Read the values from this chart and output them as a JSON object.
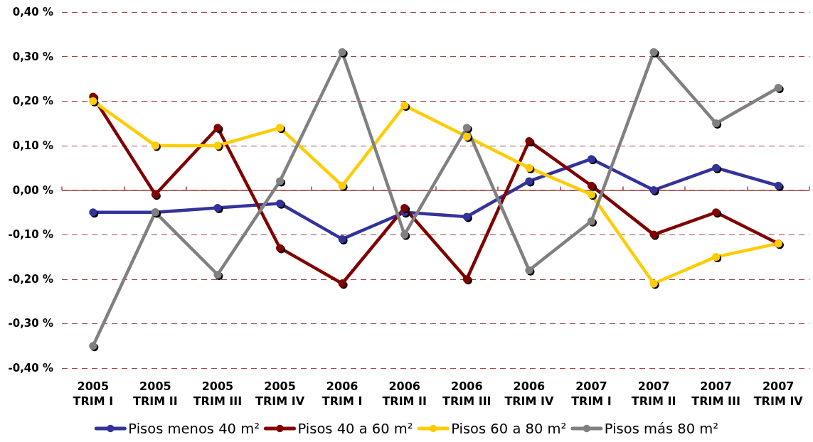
{
  "chart_data": {
    "type": "line",
    "categories": [
      "2005\nTRIM I",
      "2005\nTRIM II",
      "2005\nTRIM III",
      "2005\nTRIM IV",
      "2006\nTRIM I",
      "2006\nTRIM II",
      "2006\nTRIM III",
      "2006\nTRIM IV",
      "2007\nTRIM I",
      "2007\nTRIM II",
      "2007\nTRIM III",
      "2007\nTRIM IV"
    ],
    "series": [
      {
        "name": "Pisos menos 40 m²",
        "color": "#333399",
        "values": [
          -0.05,
          -0.05,
          -0.04,
          -0.03,
          -0.11,
          -0.05,
          -0.06,
          0.02,
          0.07,
          0.0,
          0.05,
          0.01
        ]
      },
      {
        "name": "Pisos 40 a 60 m²",
        "color": "#800000",
        "values": [
          0.21,
          -0.01,
          0.14,
          -0.13,
          -0.21,
          -0.04,
          -0.2,
          0.11,
          0.01,
          -0.1,
          -0.05,
          -0.12
        ]
      },
      {
        "name": "Pisos 60 a 80 m²",
        "color": "#ffcc00",
        "values": [
          0.2,
          0.1,
          0.1,
          0.14,
          0.01,
          0.19,
          0.12,
          0.05,
          -0.01,
          -0.21,
          -0.15,
          -0.12
        ]
      },
      {
        "name": "Pisos más 80 m²",
        "color": "#808080",
        "values": [
          -0.35,
          -0.05,
          -0.19,
          0.02,
          0.31,
          -0.1,
          0.14,
          -0.18,
          -0.07,
          0.31,
          0.15,
          0.23
        ]
      }
    ],
    "ylim": [
      -0.4,
      0.4
    ],
    "yticks": [
      {
        "value": -0.4,
        "label": "-0,40 %"
      },
      {
        "value": -0.3,
        "label": "-0,30 %"
      },
      {
        "value": -0.2,
        "label": "-0,20 %"
      },
      {
        "value": -0.1,
        "label": "-0,10 %"
      },
      {
        "value": 0,
        "label": "0,00 %"
      },
      {
        "value": 0.1,
        "label": "0,10 %"
      },
      {
        "value": 0.2,
        "label": "0,20 %"
      },
      {
        "value": 0.3,
        "label": "0,30 %"
      },
      {
        "value": 0.4,
        "label": "0,40 %"
      }
    ],
    "ref_lines": [
      {
        "axis": "y",
        "value": 0,
        "color": "#a04646"
      }
    ],
    "grid": "y",
    "legend": "bottom",
    "marker": "circle",
    "line_style": "solid"
  }
}
